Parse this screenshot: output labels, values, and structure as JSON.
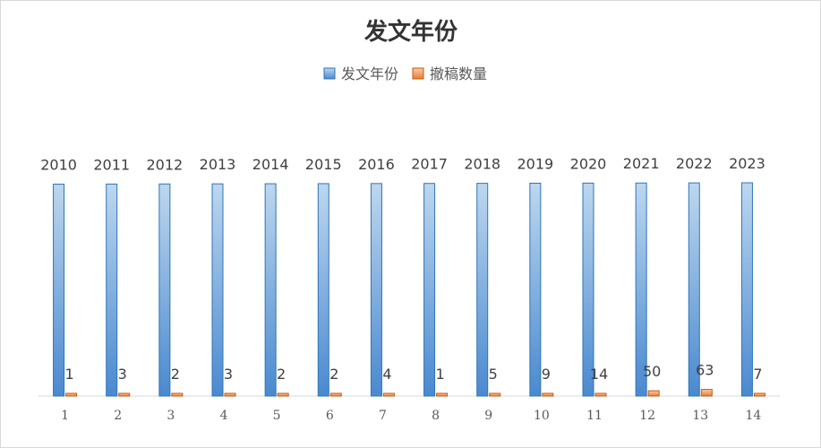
{
  "chart_data": {
    "type": "bar",
    "title": "发文年份",
    "categories": [
      "1",
      "2",
      "3",
      "4",
      "5",
      "6",
      "7",
      "8",
      "9",
      "10",
      "11",
      "12",
      "13",
      "14"
    ],
    "series": [
      {
        "name": "发文年份",
        "color": "#5b9bd5",
        "values": [
          2010,
          2011,
          2012,
          2013,
          2014,
          2015,
          2016,
          2017,
          2018,
          2019,
          2020,
          2021,
          2022,
          2023
        ]
      },
      {
        "name": "撤稿数量",
        "color": "#ed7d31",
        "values": [
          1,
          3,
          2,
          3,
          2,
          2,
          4,
          1,
          5,
          9,
          14,
          50,
          63,
          7
        ]
      }
    ],
    "ylim": [
      0,
      2023
    ],
    "grid": false,
    "legend_position": "top-center",
    "xlabel": "",
    "ylabel": ""
  }
}
